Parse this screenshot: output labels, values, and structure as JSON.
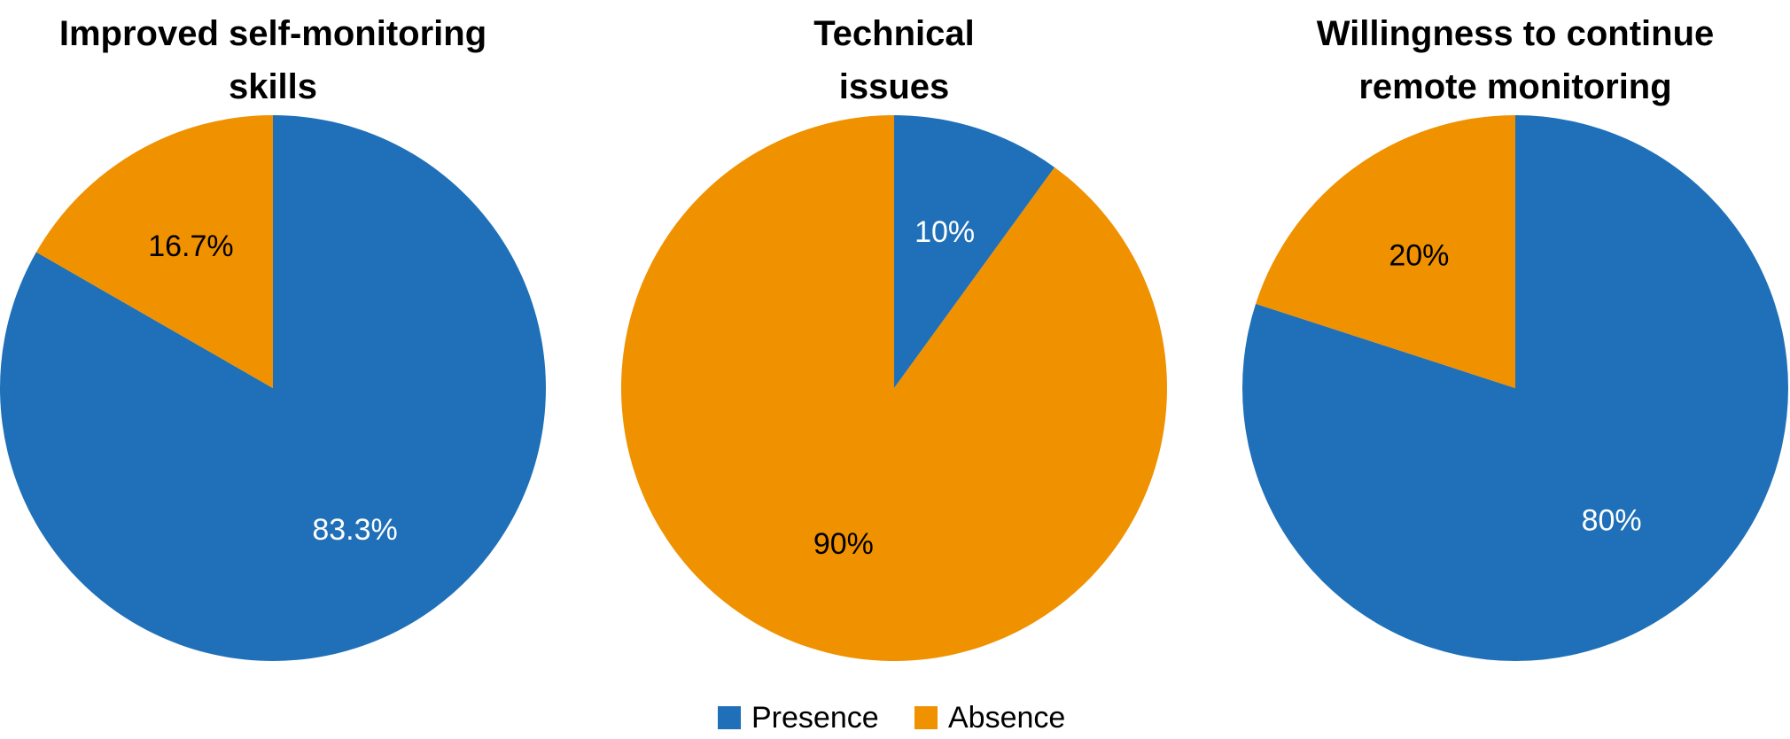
{
  "legend": [
    {
      "label": "Presence",
      "color": "#1F70B8"
    },
    {
      "label": "Absence",
      "color": "#F09100"
    }
  ],
  "chart_data": [
    {
      "type": "pie",
      "title_lines": [
        "Improved self-monitoring",
        "skills"
      ],
      "slices": [
        {
          "label": "Presence",
          "value": 83.3,
          "text": "83.3%",
          "color": "#1F70B8",
          "text_color": "#ffffff"
        },
        {
          "label": "Absence",
          "value": 16.7,
          "text": "16.7%",
          "color": "#F09100",
          "text_color": "#000000"
        }
      ]
    },
    {
      "type": "pie",
      "title_lines": [
        "Technical",
        "issues"
      ],
      "slices": [
        {
          "label": "Presence",
          "value": 10,
          "text": "10%",
          "color": "#1F70B8",
          "text_color": "#ffffff"
        },
        {
          "label": "Absence",
          "value": 90,
          "text": "90%",
          "color": "#F09100",
          "text_color": "#000000"
        }
      ]
    },
    {
      "type": "pie",
      "title_lines": [
        "Willingness to continue",
        "remote monitoring"
      ],
      "slices": [
        {
          "label": "Presence",
          "value": 80,
          "text": "80%",
          "color": "#1F70B8",
          "text_color": "#ffffff"
        },
        {
          "label": "Absence",
          "value": 20,
          "text": "20%",
          "color": "#F09100",
          "text_color": "#000000"
        }
      ]
    }
  ]
}
